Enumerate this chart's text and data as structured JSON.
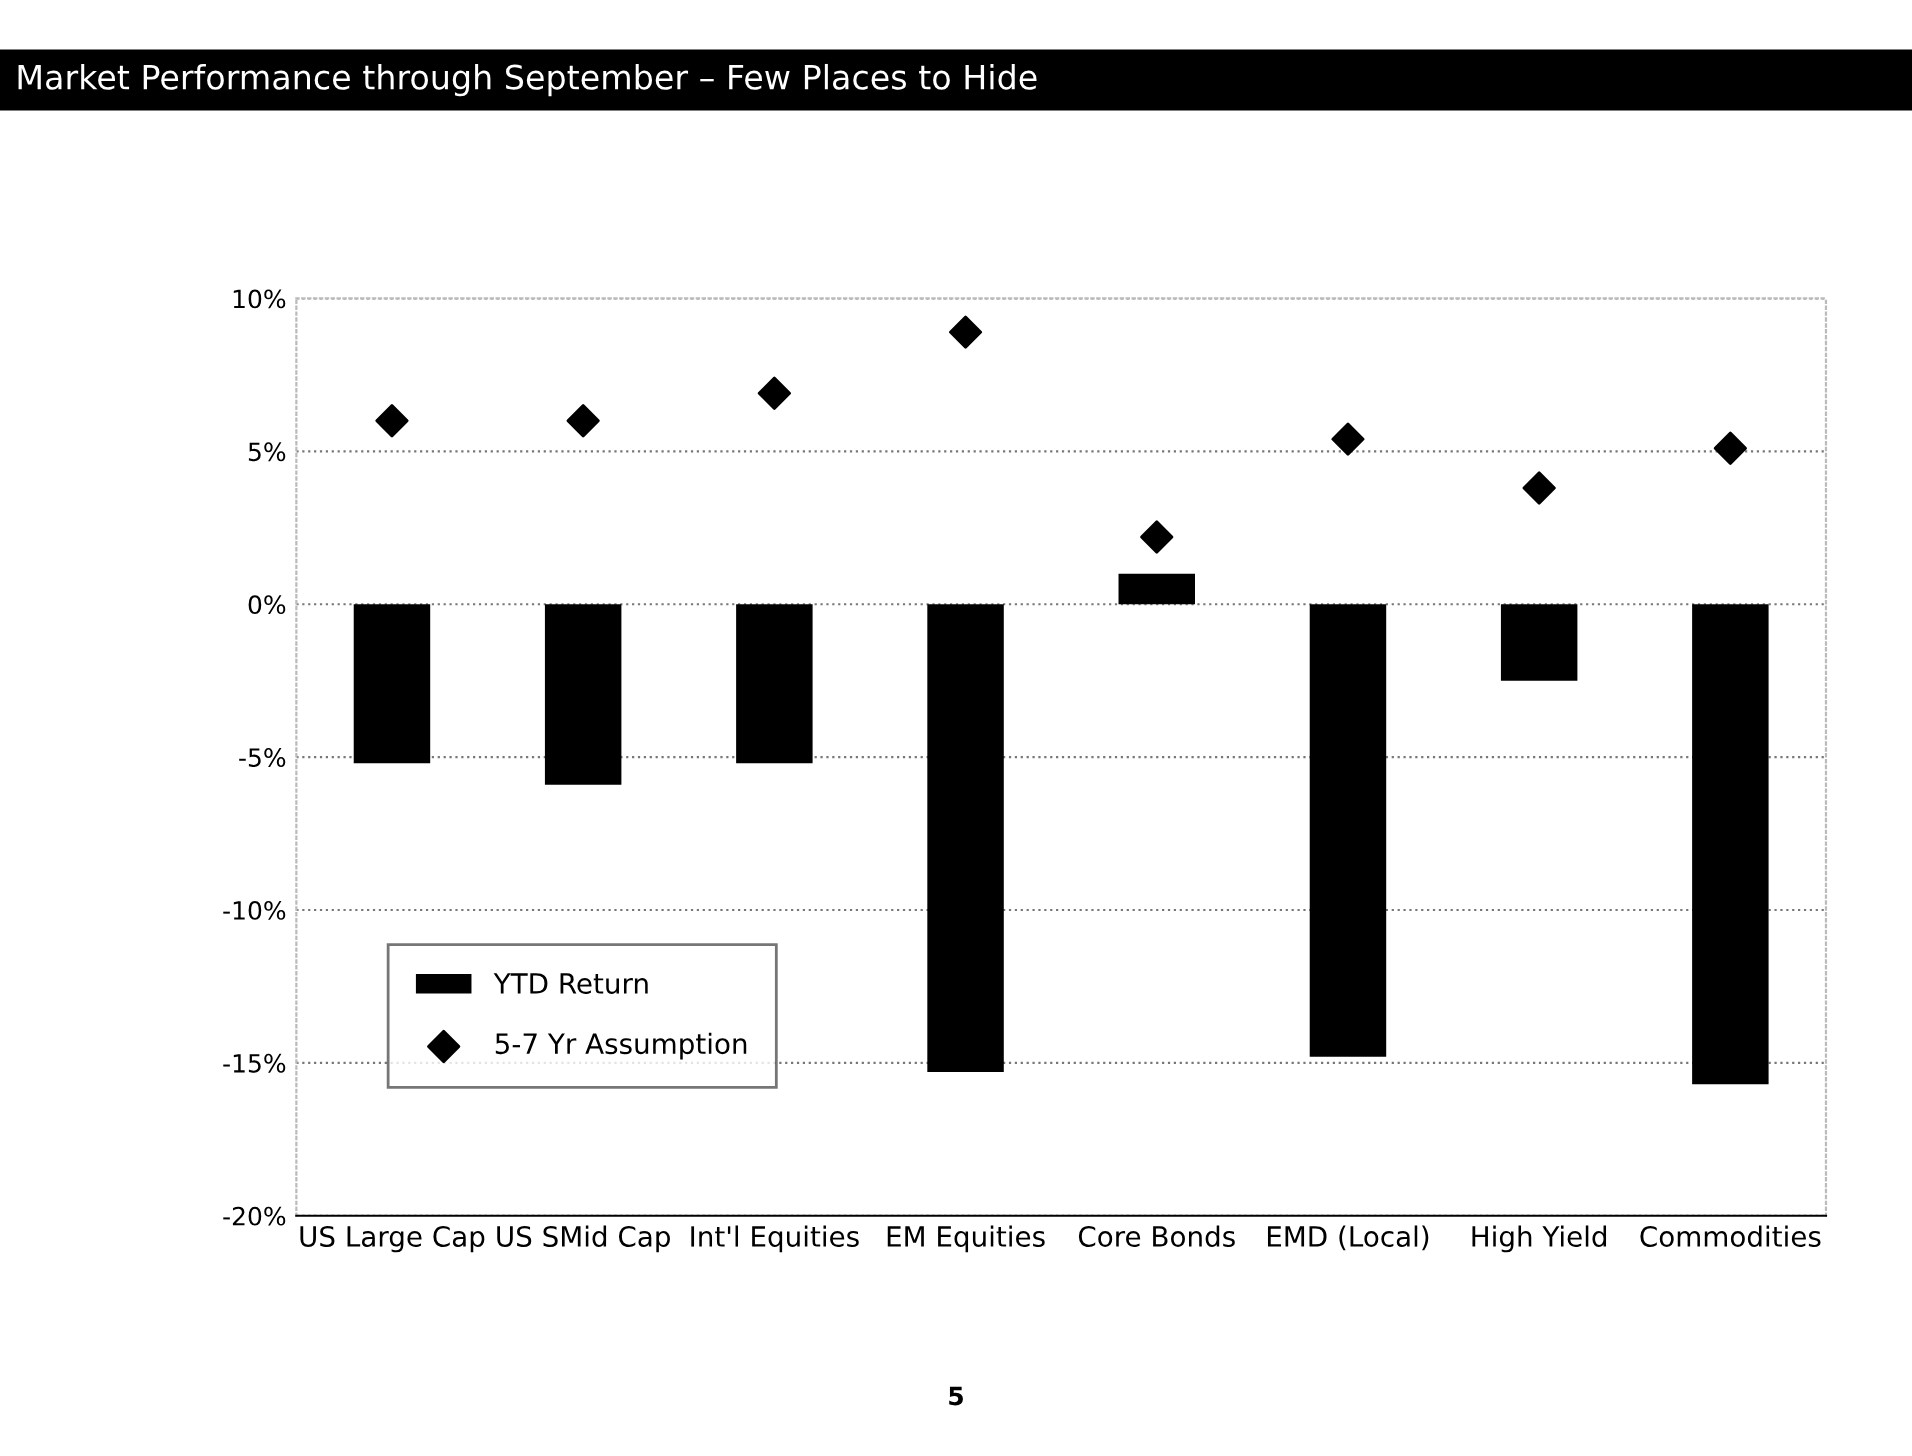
{
  "chart_data": {
    "type": "bar",
    "title": "Market Performance through September – Few Places to Hide",
    "categories": [
      "US Large Cap",
      "US SMid Cap",
      "Int'l Equities",
      "EM Equities",
      "Core Bonds",
      "EMD (Local)",
      "High Yield",
      "Commodities"
    ],
    "series": [
      {
        "name": "YTD Return",
        "color": "#000000",
        "values": [
          -5.2,
          -5.9,
          -5.2,
          -15.3,
          1.0,
          -14.8,
          -2.5,
          -15.7
        ]
      },
      {
        "name": "5-7 Yr Assumption",
        "type": "scatter",
        "marker": "diamond",
        "color": "#000000",
        "values": [
          6.0,
          6.0,
          6.9,
          8.9,
          2.2,
          5.4,
          3.8,
          5.1
        ]
      }
    ],
    "ylim": [
      -20,
      10
    ],
    "yticks": [
      {
        "value": -20,
        "label": "-20%"
      },
      {
        "value": -15,
        "label": "-15%"
      },
      {
        "value": -10,
        "label": "-10%"
      },
      {
        "value": -5,
        "label": "-5%"
      },
      {
        "value": 0,
        "label": "0%"
      },
      {
        "value": 5,
        "label": "5%"
      },
      {
        "value": 10,
        "label": "10%"
      }
    ],
    "grid": "y",
    "legend": "bottom left",
    "annotations": [
      "5"
    ]
  }
}
